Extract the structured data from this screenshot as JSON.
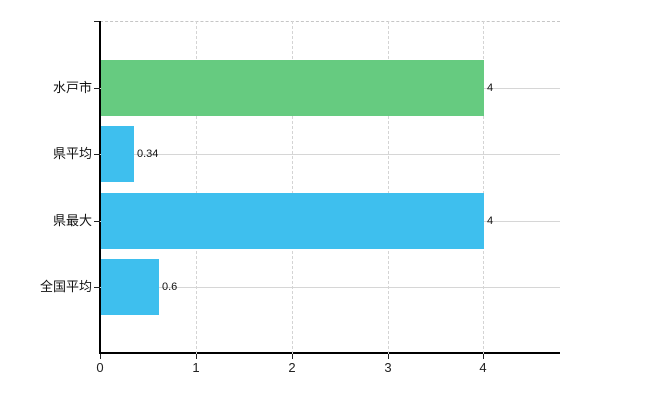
{
  "chart_data": {
    "type": "bar",
    "orientation": "horizontal",
    "title": "",
    "xlabel": "",
    "ylabel": "",
    "categories": [
      "水戸市",
      "県平均",
      "県最大",
      "全国平均"
    ],
    "values": [
      4,
      0.34,
      4,
      0.6
    ],
    "value_labels": [
      "4",
      "0.34",
      "4",
      "0.6"
    ],
    "bar_colors": [
      "#66cb80",
      "#3ebfee",
      "#3ebfee",
      "#3ebfee"
    ],
    "x_ticks": [
      0,
      1,
      2,
      3,
      4
    ],
    "x_tick_labels": [
      "0",
      "1",
      "2",
      "3",
      "4"
    ],
    "xlim": [
      0,
      4.8
    ],
    "grid": true,
    "legend": false
  },
  "colors": {
    "background": "#ffffff",
    "bar_green": "#66cb80",
    "bar_blue": "#3ebfee",
    "gridline": "#d6d6d6",
    "plot_border": "#c6c6c6",
    "axis": "#000000",
    "tick_text": "#222222",
    "label_text": "#111111"
  }
}
